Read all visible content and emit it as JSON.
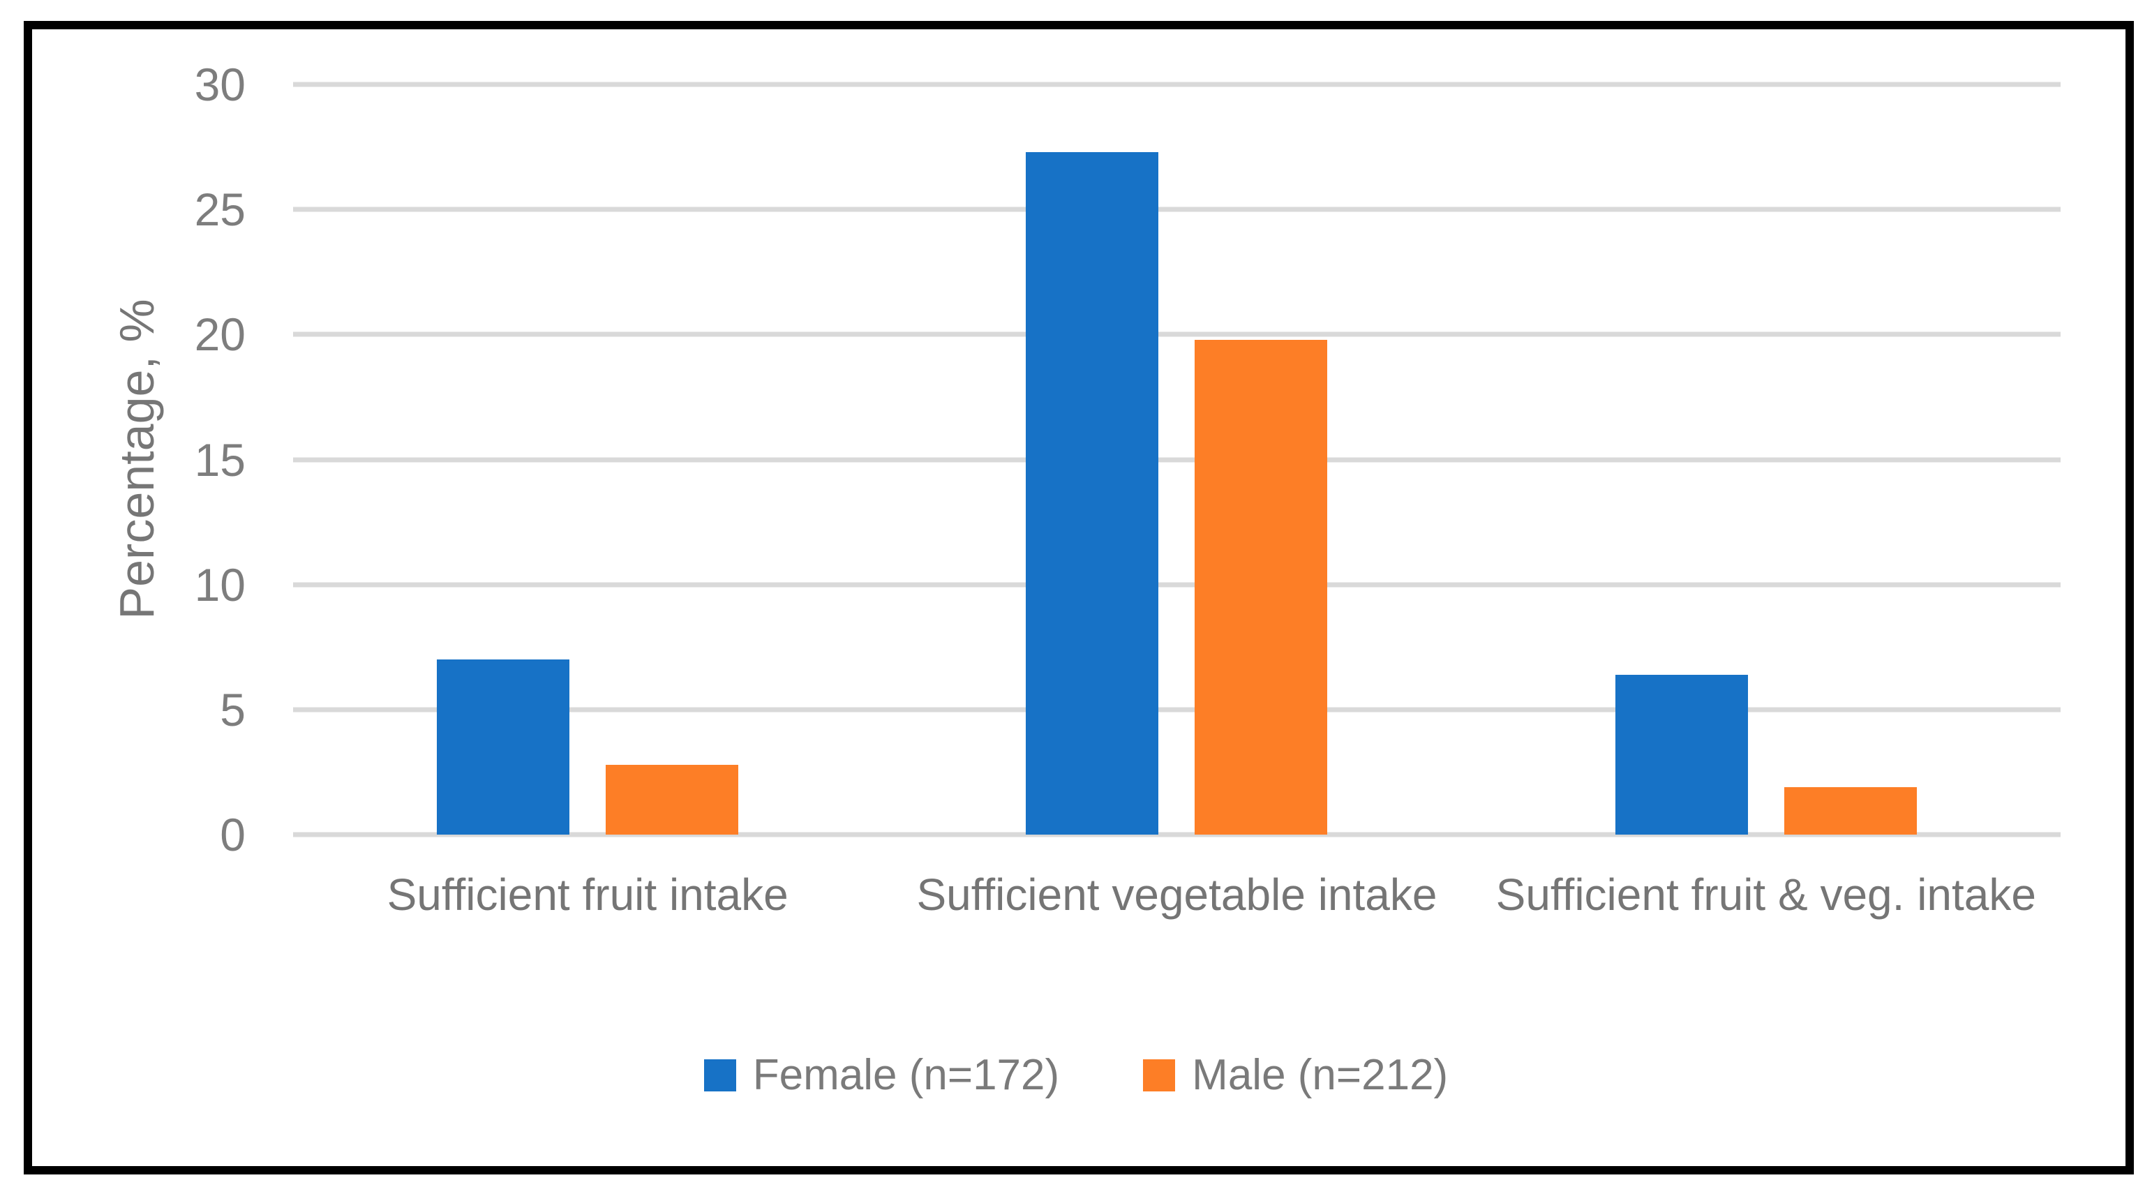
{
  "chart_data": {
    "type": "bar",
    "categories": [
      "Sufficient fruit intake",
      "Sufficient vegetable intake",
      "Sufficient fruit & veg. intake"
    ],
    "series": [
      {
        "name": "Female (n=172)",
        "color": "#1772C6",
        "values": [
          7.0,
          27.3,
          6.4
        ]
      },
      {
        "name": "Male (n=212)",
        "color": "#FD7E26",
        "values": [
          2.8,
          19.8,
          1.9
        ]
      }
    ],
    "title": "",
    "xlabel": "",
    "ylabel": "Percentage, %",
    "ylim": [
      0,
      30
    ],
    "yticks": [
      0,
      5,
      10,
      15,
      20,
      25,
      30
    ],
    "grid": true,
    "legend_position": "bottom"
  },
  "colors": {
    "background": "#FFFFFF",
    "border": "#000000",
    "gridline": "#D9D9D9",
    "axis_text": "#7D7D7D",
    "category_text": "#757575"
  }
}
